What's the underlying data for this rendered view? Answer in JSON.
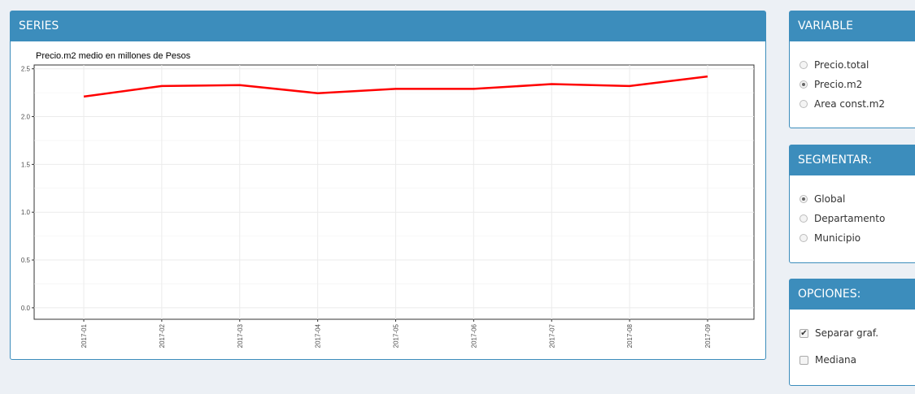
{
  "panels": {
    "series": {
      "title": "SERIES"
    },
    "variable": {
      "title": "VARIABLE",
      "options": [
        {
          "label": "Precio.total",
          "checked": false
        },
        {
          "label": "Precio.m2",
          "checked": true
        },
        {
          "label": "Area const.m2",
          "checked": false
        }
      ]
    },
    "segmentar": {
      "title": "SEGMENTAR:",
      "options": [
        {
          "label": "Global",
          "checked": true
        },
        {
          "label": "Departamento",
          "checked": false
        },
        {
          "label": "Municipio",
          "checked": false
        }
      ]
    },
    "opciones": {
      "title": "OPCIONES:",
      "options": [
        {
          "label": "Separar graf.",
          "checked": true
        },
        {
          "label": "Mediana",
          "checked": false
        }
      ]
    }
  },
  "chart_data": {
    "type": "line",
    "title": "Precio.m2 medio en millones de Pesos",
    "categories": [
      "2017-01",
      "2017-02",
      "2017-03",
      "2017-04",
      "2017-05",
      "2017-06",
      "2017-07",
      "2017-08",
      "2017-09"
    ],
    "series": [
      {
        "name": "Precio.m2",
        "color": "#ff0000",
        "values": [
          2.21,
          2.32,
          2.33,
          2.245,
          2.29,
          2.29,
          2.34,
          2.32,
          2.42
        ]
      }
    ],
    "ylim": [
      -0.12,
      2.54
    ],
    "yticks": [
      {
        "value": 0,
        "label": "0.0"
      },
      0.5,
      {
        "value": 1,
        "label": "1.0"
      },
      1.5,
      {
        "value": 2,
        "label": "2.0"
      },
      2.5
    ],
    "grid": true,
    "legend": false
  }
}
